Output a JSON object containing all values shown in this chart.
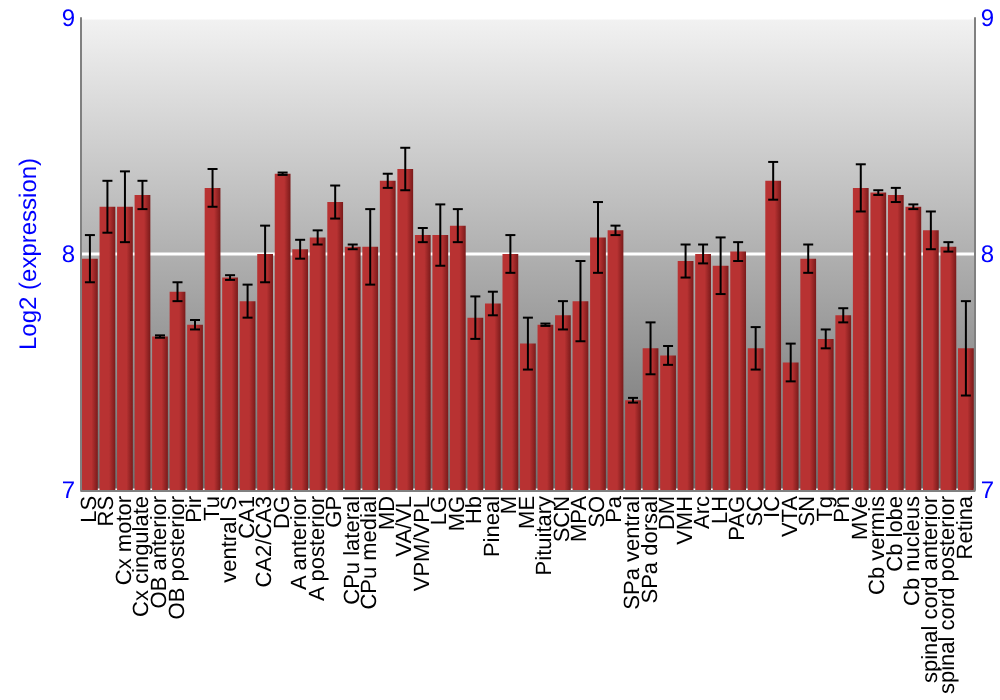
{
  "chart_data": {
    "type": "bar",
    "ylabel": "Log2 (expression)",
    "categories": [
      "LS",
      "RS",
      "Cx motor",
      "Cx cingulate",
      "OB anterior",
      "OB posterior",
      "Pir",
      "Tu",
      "ventral S",
      "CA1",
      "CA2/CA3",
      "DG",
      "A anterior",
      "A posterior",
      "GP",
      "CPu lateral",
      "CPu medial",
      "MD",
      "VA/VL",
      "VPM/VPL",
      "LG",
      "MG",
      "Hb",
      "Pineal",
      "M",
      "ME",
      "Pituitary",
      "SCN",
      "MPA",
      "SO",
      "Pa",
      "SPa ventral",
      "SPa dorsal",
      "DM",
      "VMH",
      "Arc",
      "LH",
      "PAG",
      "SC",
      "IC",
      "VTA",
      "SN",
      "Tg",
      "Pn",
      "MVe",
      "Cb vermis",
      "Cb lobe",
      "Cb nucleus",
      "spinal cord anterior",
      "spinal cord posterior",
      "Retina"
    ],
    "values": [
      7.98,
      8.2,
      8.2,
      8.25,
      7.65,
      7.84,
      7.7,
      8.28,
      7.9,
      7.8,
      8.0,
      8.34,
      8.02,
      8.07,
      8.22,
      8.03,
      8.03,
      8.31,
      8.36,
      8.08,
      8.08,
      8.12,
      7.73,
      7.79,
      8.0,
      7.62,
      7.7,
      7.74,
      7.8,
      8.07,
      8.1,
      7.38,
      7.6,
      7.57,
      7.97,
      8.0,
      7.95,
      8.01,
      7.6,
      8.31,
      7.54,
      7.98,
      7.64,
      7.74,
      8.28,
      8.26,
      8.25,
      8.2,
      8.1,
      8.03,
      7.6
    ],
    "errors": [
      0.1,
      0.11,
      0.15,
      0.06,
      0.005,
      0.04,
      0.02,
      0.08,
      0.01,
      0.07,
      0.12,
      0.005,
      0.04,
      0.03,
      0.07,
      0.01,
      0.16,
      0.03,
      0.09,
      0.03,
      0.13,
      0.07,
      0.09,
      0.05,
      0.08,
      0.11,
      0.005,
      0.06,
      0.17,
      0.15,
      0.02,
      0.01,
      0.11,
      0.04,
      0.07,
      0.04,
      0.12,
      0.04,
      0.09,
      0.08,
      0.08,
      0.06,
      0.04,
      0.03,
      0.1,
      0.01,
      0.03,
      0.01,
      0.08,
      0.02,
      0.2
    ],
    "color": "#b83232",
    "ylim": [
      7,
      9
    ],
    "yticks": [
      7,
      8,
      9
    ],
    "y2lim": [
      7,
      9
    ],
    "y2ticks": [
      7,
      8,
      9
    ],
    "grid": true
  }
}
